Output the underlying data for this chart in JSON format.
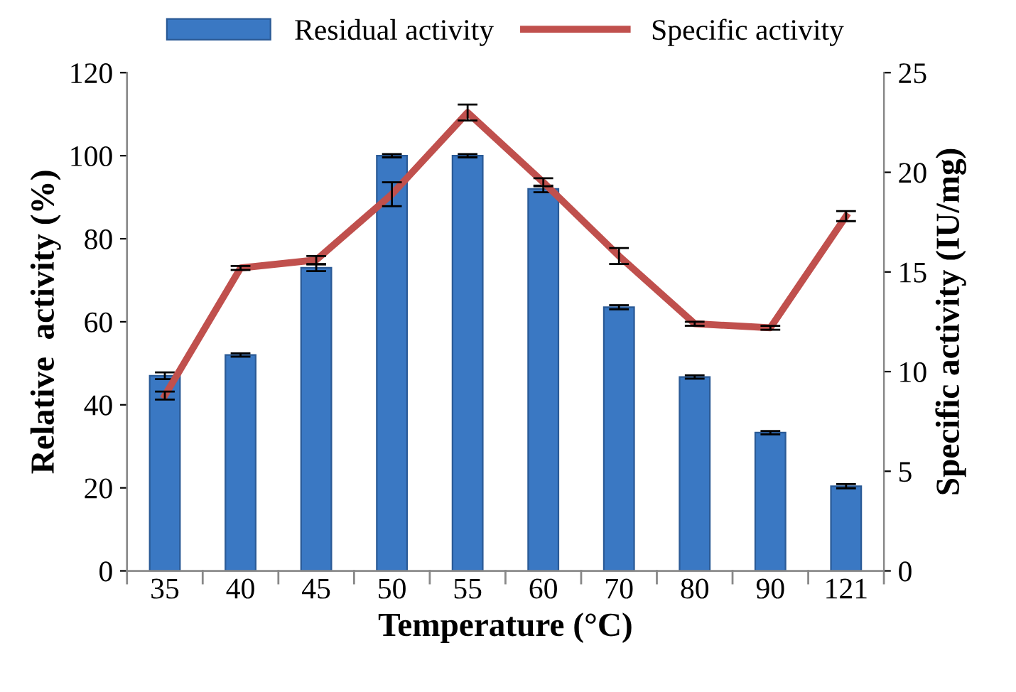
{
  "chart_data": {
    "type": "bar",
    "xlabel": "Temperature (°C)",
    "ylabel": "Relative  activity (%)",
    "y2label": "Specific activity (IU/mg)",
    "categories": [
      "35",
      "40",
      "45",
      "50",
      "55",
      "60",
      "70",
      "80",
      "90",
      "121"
    ],
    "series": [
      {
        "name": "Residual activity",
        "color": "#3a78c3",
        "values": [
          47,
          52,
          73,
          100,
          100,
          92,
          63.5,
          46.7,
          33.3,
          20.4
        ],
        "errors": [
          0.8,
          0.4,
          0.8,
          0.4,
          0.4,
          0.8,
          0.5,
          0.4,
          0.4,
          0.5
        ]
      },
      {
        "name": "Specific activity",
        "type": "line",
        "axis": "y2",
        "color": "#c0504d",
        "values": [
          8.8,
          15.2,
          15.6,
          18.9,
          23.0,
          19.5,
          15.8,
          12.4,
          12.2,
          17.8
        ],
        "errors": [
          0.2,
          0.1,
          0.2,
          0.6,
          0.4,
          0.2,
          0.4,
          0.1,
          0.1,
          0.25
        ]
      }
    ],
    "ylim": [
      0,
      120
    ],
    "yticks": [
      0,
      20,
      40,
      60,
      80,
      100,
      120
    ],
    "y2lim": [
      0,
      25
    ],
    "y2ticks": [
      0,
      5,
      10,
      15,
      20,
      25
    ],
    "grid": false,
    "legend": "top",
    "marker": "none",
    "line_style": "solid"
  }
}
